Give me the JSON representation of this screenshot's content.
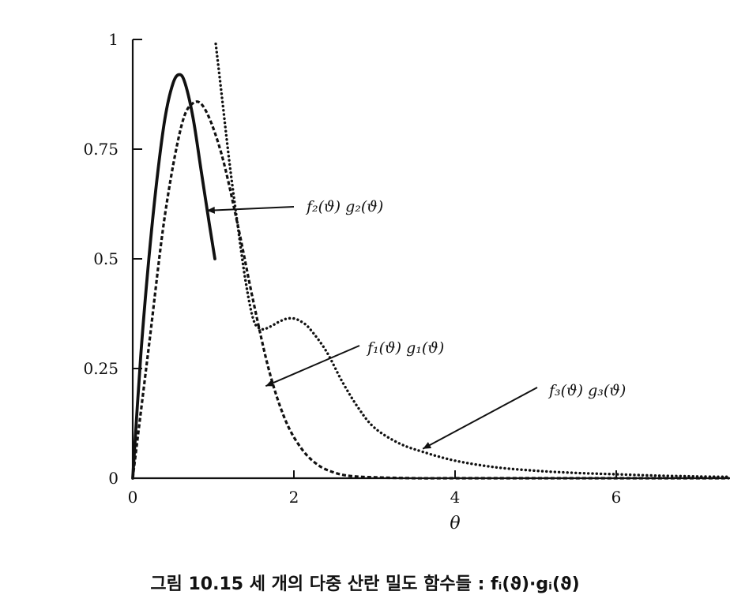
{
  "chart_data": {
    "type": "line",
    "xlabel": "θ",
    "ylabel": "",
    "xlim": [
      0,
      7.4
    ],
    "ylim": [
      0,
      1
    ],
    "x_ticks": [
      "0",
      "2",
      "4",
      "6"
    ],
    "y_ticks": [
      "0",
      "0.25",
      "0.5",
      "0.75",
      "1"
    ],
    "series": [
      {
        "name": "f₂(ϑ) g₂(ϑ)",
        "style": "solid",
        "x": [
          0,
          0.1,
          0.2,
          0.3,
          0.4,
          0.5,
          0.58,
          0.65,
          0.75,
          0.85,
          0.95,
          1.02
        ],
        "y": [
          0,
          0.28,
          0.5,
          0.68,
          0.82,
          0.9,
          0.92,
          0.9,
          0.82,
          0.7,
          0.58,
          0.5
        ]
      },
      {
        "name": "f₁(ϑ) g₁(ϑ)",
        "style": "dashed",
        "x": [
          0,
          0.2,
          0.4,
          0.6,
          0.75,
          0.9,
          1.1,
          1.3,
          1.5,
          1.7,
          1.9,
          2.1,
          2.3,
          2.5,
          2.7,
          3.0,
          3.5,
          4.0,
          5.0,
          6.0,
          7.4
        ],
        "y": [
          0,
          0.3,
          0.6,
          0.8,
          0.855,
          0.84,
          0.74,
          0.58,
          0.4,
          0.24,
          0.13,
          0.066,
          0.03,
          0.013,
          0.005,
          0.002,
          0,
          0,
          0,
          0,
          0
        ]
      },
      {
        "name": "f₃(ϑ) g₃(ϑ)",
        "style": "dotted",
        "x": [
          1.03,
          1.1,
          1.2,
          1.3,
          1.4,
          1.5,
          1.6,
          1.7,
          1.8,
          1.9,
          2.0,
          2.1,
          2.2,
          2.4,
          2.6,
          2.8,
          3.0,
          3.3,
          3.6,
          4.0,
          4.5,
          5.0,
          5.5,
          6.0,
          6.5,
          7.0,
          7.4
        ],
        "y": [
          0.99,
          0.88,
          0.72,
          0.58,
          0.45,
          0.36,
          0.34,
          0.345,
          0.355,
          0.363,
          0.364,
          0.356,
          0.34,
          0.29,
          0.22,
          0.16,
          0.115,
          0.08,
          0.06,
          0.04,
          0.025,
          0.017,
          0.012,
          0.009,
          0.006,
          0.004,
          0.003
        ]
      }
    ],
    "annotations": [
      {
        "text": "f₂(ϑ) g₂(ϑ)",
        "points_to": {
          "series": "f₂(ϑ) g₂(ϑ)",
          "x": 0.92,
          "y": 0.61
        }
      },
      {
        "text": "f₁(ϑ) g₁(ϑ)",
        "points_to": {
          "series": "f₁(ϑ) g₁(ϑ)",
          "x": 1.65,
          "y": 0.21
        }
      },
      {
        "text": "f₃(ϑ) g₃(ϑ)",
        "points_to": {
          "series": "f₃(ϑ) g₃(ϑ)",
          "x": 3.6,
          "y": 0.067
        }
      }
    ],
    "grid": false,
    "legend": "none"
  },
  "caption": "그림 10.15  세 개의 다중 산란 밀도 함수들 : fᵢ(ϑ)·gᵢ(ϑ)"
}
